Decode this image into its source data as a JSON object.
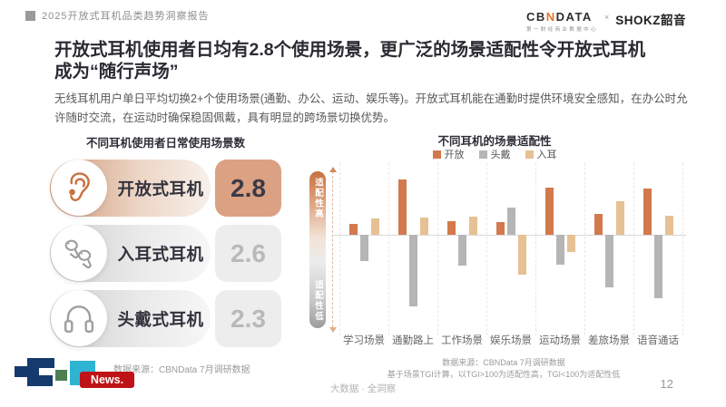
{
  "header": {
    "report_tag": "2025开放式耳机品类趋势洞察报告",
    "logo_cbndata_pre": "CB",
    "logo_cbndata_n": "N",
    "logo_cbndata_post": "DATA",
    "logo_cbndata_sub": "第一财经商业数据中心",
    "logo_x": "×",
    "logo_shokz": "SHOKZ韶音"
  },
  "title": {
    "line1": "开放式耳机使用者日均有2.8个使用场景，更广泛的场景适配性令开放式耳机",
    "line2": "成为“随行声场”"
  },
  "intro": "无线耳机用户单日平均切换2+个使用场景(通勤、办公、运动、娱乐等)。开放式耳机能在通勤时提供环境安全感知，在办公时允许随时交流，在运动时确保稳固佩戴，具有明显的跨场景切换优势。",
  "left_panel": {
    "title": "不同耳机使用者日常使用场景数",
    "rows": [
      {
        "label": "开放式耳机",
        "value": "2.8",
        "icon": "ear-icon",
        "highlight": true
      },
      {
        "label": "入耳式耳机",
        "value": "2.6",
        "icon": "earbuds-icon",
        "highlight": false
      },
      {
        "label": "头戴式耳机",
        "value": "2.3",
        "icon": "headphones-icon",
        "highlight": false
      }
    ],
    "source_note": "数据来源：CBNData 7月调研数据"
  },
  "chart": {
    "title": "不同耳机的场景适配性",
    "axis_high": "适配性高",
    "axis_low": "适配性低",
    "source_note1": "数据来源：CBNData 7月调研数据",
    "source_note2": "基于场景TGI计算，以TGI>100为适配性高，TGI<100为适配性低"
  },
  "chart_data": {
    "type": "bar",
    "title": "不同耳机的场景适配性",
    "categories": [
      "学习场景",
      "通勤路上",
      "工作场景",
      "娱乐场景",
      "运动场景",
      "差旅场景",
      "语音通话"
    ],
    "series": [
      {
        "name": "开放",
        "color": "#d2794d",
        "values": [
          12,
          61,
          15,
          14,
          52,
          23,
          51
        ]
      },
      {
        "name": "头戴",
        "color": "#b5b5b5",
        "values": [
          -29,
          -79,
          -34,
          30,
          -33,
          -58,
          -70
        ]
      },
      {
        "name": "入耳",
        "color": "#e6c193",
        "values": [
          18,
          19,
          20,
          -44,
          -19,
          37,
          21
        ]
      }
    ],
    "ylabel_high": "适配性高",
    "ylabel_low": "适配性低",
    "ylim": [
      -85,
      70
    ],
    "legend_position": "top",
    "grid": "dashed-vertical"
  },
  "colors": {
    "accent_orange": "#d2794d",
    "accent_tan": "#e6c193",
    "neutral_gray": "#b5b5b5",
    "highlight_box": "#dba183",
    "logo_navy": "#153a6e",
    "logo_teal": "#2fb3d2",
    "logo_green": "#4d7f52",
    "logo_red": "#bf1318"
  },
  "footer": {
    "center_text": "大数据 · 全洞察",
    "page_number": "12",
    "news_badge": "News."
  }
}
